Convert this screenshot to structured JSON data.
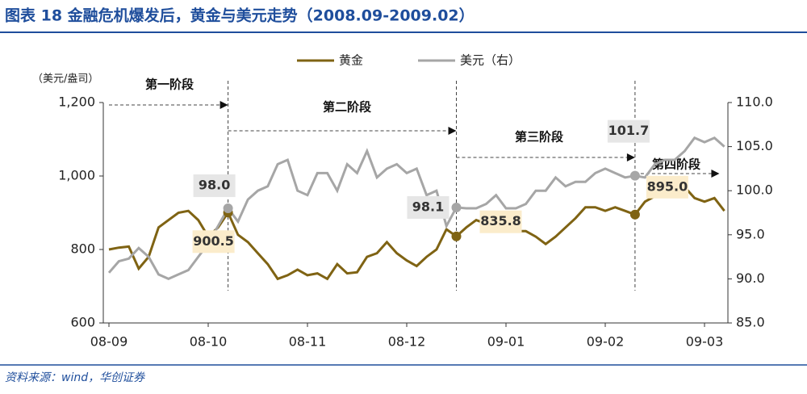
{
  "header": {
    "title": "图表 18 金融危机爆发后，黄金与美元走势（2008.09-2009.02）"
  },
  "footer": {
    "source": "资料来源：wind，华创证券"
  },
  "chart_data": {
    "type": "line",
    "ylabel": "（美元/盎司）",
    "categories": [
      "08-09",
      null,
      null,
      null,
      null,
      null,
      null,
      null,
      null,
      null,
      "08-10",
      null,
      null,
      null,
      null,
      null,
      null,
      null,
      null,
      null,
      "08-11",
      null,
      null,
      null,
      null,
      null,
      null,
      null,
      null,
      null,
      "08-12",
      null,
      null,
      null,
      null,
      null,
      null,
      null,
      null,
      null,
      "09-01",
      null,
      null,
      null,
      null,
      null,
      null,
      null,
      null,
      null,
      "09-02",
      null,
      null,
      null,
      null,
      null,
      null,
      null,
      null,
      null,
      "09-03",
      null,
      null
    ],
    "series": [
      {
        "name": "黄金",
        "color": "#7f6313",
        "axis": "y",
        "values": [
          800,
          805,
          808,
          748,
          780,
          860,
          880,
          900,
          905,
          880,
          835,
          860,
          900.5,
          840,
          820,
          790,
          760,
          720,
          730,
          745,
          730,
          735,
          720,
          760,
          735,
          738,
          780,
          790,
          820,
          790,
          770,
          755,
          780,
          800,
          855,
          835.8,
          860,
          880,
          870,
          860,
          870,
          850,
          850,
          835,
          815,
          835,
          860,
          885,
          915,
          915,
          905,
          915,
          905,
          895.0,
          930,
          945,
          960,
          990,
          970,
          940,
          930,
          940,
          905
        ],
        "value_labels": [
          null,
          null,
          null,
          null,
          null,
          null,
          null,
          null,
          null,
          null,
          null,
          null,
          "900.5",
          null,
          null,
          null,
          null,
          null,
          null,
          null,
          null,
          null,
          null,
          null,
          null,
          null,
          null,
          null,
          null,
          null,
          null,
          null,
          null,
          null,
          null,
          "835.8",
          null,
          null,
          null,
          null,
          null,
          null,
          null,
          null,
          null,
          null,
          null,
          null,
          null,
          null,
          null,
          null,
          null,
          "895.0",
          null,
          null,
          null,
          null,
          null,
          null,
          null,
          null,
          null
        ]
      },
      {
        "name": "美元（右）",
        "color": "#a6a6a6",
        "axis": "y2",
        "values": [
          90.7,
          92,
          92.3,
          93.5,
          92.5,
          90.5,
          90,
          90.5,
          91,
          92.5,
          94,
          96,
          98.0,
          96.5,
          99,
          100,
          100.5,
          103,
          103.5,
          100,
          99.5,
          102,
          102,
          100,
          103,
          102,
          104.5,
          101.5,
          102.5,
          103,
          102,
          102.5,
          99.5,
          100,
          96,
          98.1,
          98,
          98,
          98.5,
          99.5,
          98,
          98,
          98.5,
          100,
          100,
          101.5,
          100.5,
          101,
          101,
          102,
          102.5,
          102,
          101.5,
          101.7,
          101.5,
          103,
          103.5,
          103.5,
          104.5,
          106,
          105.5,
          106,
          105
        ],
        "value_labels": [
          null,
          null,
          null,
          null,
          null,
          null,
          null,
          null,
          null,
          null,
          null,
          null,
          "98.0",
          null,
          null,
          null,
          null,
          null,
          null,
          null,
          null,
          null,
          null,
          null,
          null,
          null,
          null,
          null,
          null,
          null,
          null,
          null,
          null,
          null,
          null,
          "98.1",
          null,
          null,
          null,
          null,
          null,
          null,
          null,
          null,
          null,
          null,
          null,
          null,
          null,
          null,
          null,
          null,
          null,
          "101.7",
          null,
          null,
          null,
          null,
          null,
          null,
          null,
          null,
          null
        ]
      }
    ],
    "ylim": [
      600,
      1200
    ],
    "yticks": [
      600,
      800,
      {
        "value": 1000,
        "label": "1,000"
      },
      {
        "value": 1200,
        "label": "1,200"
      }
    ],
    "y2lim": [
      85,
      110
    ],
    "y2ticks": [
      {
        "value": 85,
        "label": "85.0"
      },
      {
        "value": 90,
        "label": "90.0"
      },
      {
        "value": 95,
        "label": "95.0"
      },
      {
        "value": 100,
        "label": "100.0"
      },
      {
        "value": 105,
        "label": "105.0"
      },
      {
        "value": 110,
        "label": "110.0"
      }
    ],
    "annotations": [
      "第一阶段",
      "第二阶段",
      "第三阶段",
      "第四阶段"
    ]
  }
}
